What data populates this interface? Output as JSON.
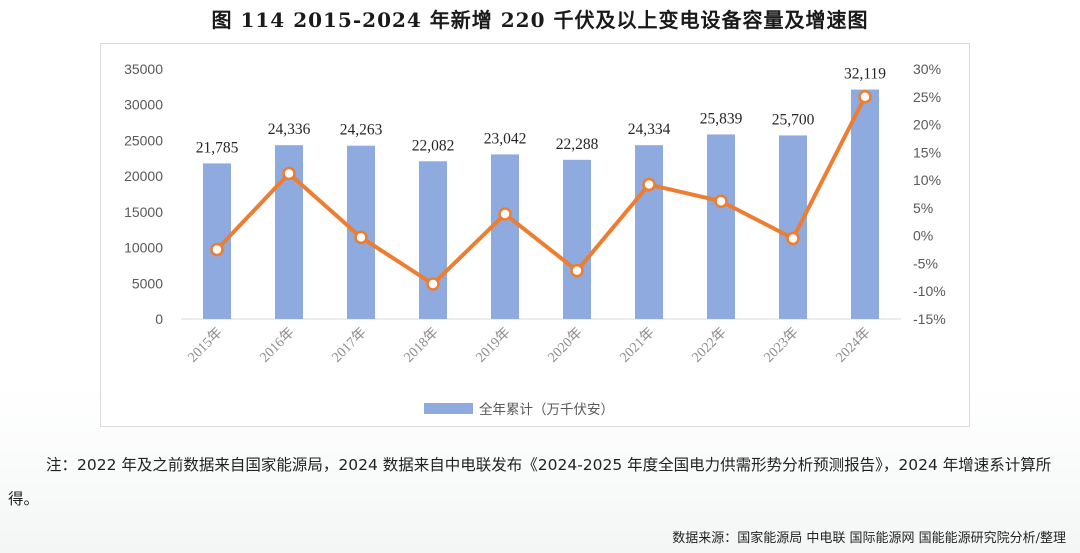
{
  "figure": {
    "title": "图 114 2015-2024 年新增 220 千伏及以上变电设备容量及增速图",
    "note": "注：2022 年及之前数据来自国家能源局，2024 数据来自中电联发布《2024-2025 年度全国电力供需形势分析预测报告》，2024 年增速系计算所得。",
    "source": "数据来源：国家能源局 中电联 国际能源网 国能能源研究院分析/整理"
  },
  "colors": {
    "bar": "#8eaadf",
    "line": "#ed7d31",
    "marker_fill": "#ffffff",
    "axis_text": "#595959",
    "tick_rotated_text": "#8c8c8c"
  },
  "chart_data": {
    "type": "bar",
    "categories": [
      "2015年",
      "2016年",
      "2017年",
      "2018年",
      "2019年",
      "2020年",
      "2021年",
      "2022年",
      "2023年",
      "2024年"
    ],
    "series": [
      {
        "name": "全年累计（万千伏安）",
        "type": "bar",
        "axis": "left",
        "values": [
          21785,
          24336,
          24263,
          22082,
          23042,
          22288,
          24334,
          25839,
          25700,
          32119
        ],
        "data_labels": [
          "21,785",
          "24,336",
          "24,263",
          "22,082",
          "23,042",
          "22,288",
          "24,334",
          "25,839",
          "25,700",
          "32,119"
        ]
      },
      {
        "type": "line",
        "axis": "right",
        "values": [
          -2.5,
          11.2,
          -0.3,
          -8.7,
          3.9,
          -6.3,
          9.2,
          6.2,
          -0.5,
          25.0
        ]
      }
    ],
    "y_left": {
      "min": 0,
      "max": 35000,
      "ticks": [
        "0",
        "5000",
        "10000",
        "15000",
        "20000",
        "25000",
        "30000",
        "35000"
      ]
    },
    "y_right": {
      "min": -15,
      "max": 30,
      "ticks": [
        "-15%",
        "-10%",
        "-5%",
        "0%",
        "5%",
        "10%",
        "15%",
        "20%",
        "25%",
        "30%"
      ]
    },
    "grid": false,
    "legend_position": "bottom"
  }
}
